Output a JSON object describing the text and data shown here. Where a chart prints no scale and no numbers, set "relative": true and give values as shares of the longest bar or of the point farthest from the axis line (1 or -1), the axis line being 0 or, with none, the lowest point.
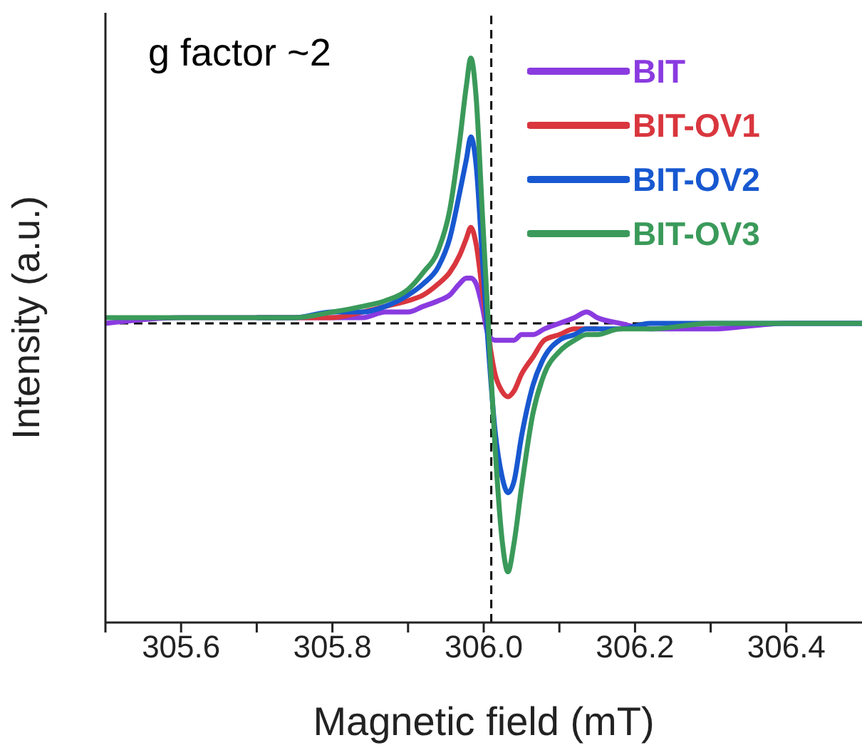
{
  "chart_data": {
    "type": "line",
    "relative": true,
    "xlabel": "Magnetic field (mT)",
    "ylabel": "Intensity (a.u.)",
    "annotations": [
      "g factor ~2"
    ],
    "legend": "top right",
    "marker": "none",
    "line_style": "solid",
    "x": [
      305.5,
      305.6,
      305.7,
      305.75,
      305.8,
      305.84,
      305.87,
      305.9,
      305.92,
      305.94,
      305.955,
      305.968,
      305.977,
      305.983,
      305.99,
      305.998,
      306.006,
      306.015,
      306.024,
      306.032,
      306.04,
      306.05,
      306.065,
      306.08,
      306.1,
      306.12,
      306.136,
      306.15,
      306.18,
      306.22,
      306.3,
      306.4,
      306.5
    ],
    "xlim": [
      305.5,
      306.5
    ],
    "xticks": [
      {
        "value": 305.5,
        "label": null
      },
      305.6,
      {
        "value": 305.7,
        "label": null
      },
      305.8,
      {
        "value": 305.9,
        "label": null
      },
      {
        "value": 306,
        "label": "306.0"
      },
      {
        "value": 306.1,
        "label": null
      },
      306.2,
      {
        "value": 306.3,
        "label": null
      },
      306.4
    ],
    "series": [
      {
        "name": "BIT",
        "color": "#8a3be0",
        "values": [
          0.53,
          0.54,
          0.54,
          0.54,
          0.54,
          0.54,
          0.55,
          0.55,
          0.56,
          0.57,
          0.58,
          0.6,
          0.61,
          0.61,
          0.6,
          0.56,
          0.51,
          0.5,
          0.5,
          0.5,
          0.5,
          0.51,
          0.51,
          0.52,
          0.53,
          0.54,
          0.55,
          0.54,
          0.53,
          0.52,
          0.52,
          0.53,
          0.53
        ]
      },
      {
        "name": "BIT-OV1",
        "color": "#d9363e",
        "values": [
          null,
          null,
          0.54,
          0.54,
          0.54,
          0.55,
          0.56,
          0.57,
          0.58,
          0.6,
          0.62,
          0.65,
          0.68,
          0.7,
          0.67,
          0.59,
          0.51,
          0.44,
          0.41,
          0.4,
          0.41,
          0.44,
          0.47,
          0.5,
          0.51,
          0.52,
          0.52,
          0.52,
          null,
          null,
          null,
          null,
          null
        ]
      },
      {
        "name": "BIT-OV2",
        "color": "#1858d0",
        "values": [
          null,
          null,
          0.54,
          0.54,
          0.55,
          0.55,
          0.56,
          0.58,
          0.6,
          0.63,
          0.68,
          0.76,
          0.82,
          0.86,
          0.81,
          0.65,
          0.49,
          0.34,
          0.26,
          0.23,
          0.25,
          0.33,
          0.42,
          0.47,
          0.5,
          0.51,
          0.52,
          0.52,
          0.52,
          0.53,
          0.53,
          0.53,
          0.53
        ]
      },
      {
        "name": "BIT-OV3",
        "color": "#3a9a5a",
        "values": [
          0.54,
          0.54,
          0.54,
          0.54,
          0.55,
          0.56,
          0.57,
          0.59,
          0.62,
          0.66,
          0.73,
          0.85,
          0.95,
          1.0,
          0.93,
          0.73,
          0.53,
          0.31,
          0.15,
          0.09,
          0.14,
          0.24,
          0.37,
          0.44,
          0.48,
          0.5,
          0.51,
          0.51,
          0.52,
          0.52,
          0.53,
          0.53,
          0.53
        ]
      }
    ],
    "ref_lines": [
      {
        "axis": "y",
        "value": 0.53,
        "label": null,
        "color": "#000000",
        "line_style": "dashed"
      },
      {
        "axis": "x",
        "value": 306.01,
        "label": null,
        "color": "#000000",
        "line_style": "dashed"
      }
    ]
  }
}
